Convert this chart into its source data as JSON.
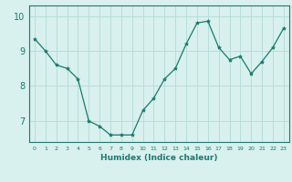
{
  "x": [
    0,
    1,
    2,
    3,
    4,
    5,
    6,
    7,
    8,
    9,
    10,
    11,
    12,
    13,
    14,
    15,
    16,
    17,
    18,
    19,
    20,
    21,
    22,
    23
  ],
  "y": [
    9.35,
    9.0,
    8.6,
    8.5,
    8.2,
    7.0,
    6.85,
    6.6,
    6.6,
    6.6,
    7.3,
    7.65,
    8.2,
    8.5,
    9.2,
    9.8,
    9.85,
    9.1,
    8.75,
    8.85,
    8.35,
    8.7,
    9.1,
    9.65
  ],
  "line_color": "#1a7a6e",
  "marker": "*",
  "marker_size": 3,
  "bg_color": "#d8f0ee",
  "grid_color": "#b8deda",
  "xlabel": "Humidex (Indice chaleur)",
  "yticks": [
    7,
    8,
    9,
    10
  ],
  "xticks": [
    0,
    1,
    2,
    3,
    4,
    5,
    6,
    7,
    8,
    9,
    10,
    11,
    12,
    13,
    14,
    15,
    16,
    17,
    18,
    19,
    20,
    21,
    22,
    23
  ],
  "ylim": [
    6.4,
    10.3
  ],
  "xlim": [
    -0.5,
    23.5
  ]
}
